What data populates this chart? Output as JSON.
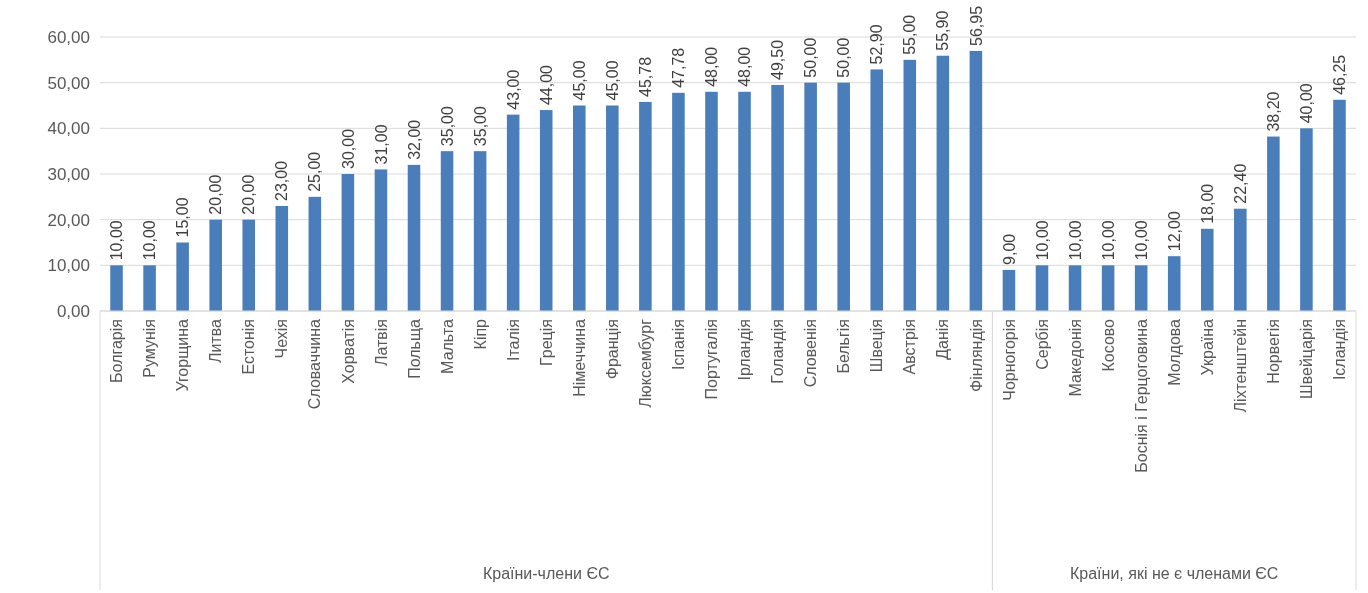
{
  "chart_data": [
    {
      "type": "bar",
      "categories": [
        "Болгарія",
        "Румунія",
        "Угорщина",
        "Литва",
        "Естонія",
        "Чехія",
        "Словаччина",
        "Хорватія",
        "Латвія",
        "Польща",
        "Мальта",
        "Кіпр",
        "Італія",
        "Греція",
        "Німеччина",
        "Франція",
        "Люксембург",
        "Іспанія",
        "Португалія",
        "Ірландія",
        "Голандія",
        "Словенія",
        "Бельгія",
        "Швеція",
        "Австрія",
        "Данія",
        "Фінляндія"
      ],
      "values": [
        10,
        10,
        15,
        20,
        20,
        23,
        25,
        30,
        31,
        32,
        35,
        35,
        43,
        44,
        45,
        45,
        45.78,
        47.78,
        48,
        48,
        49.5,
        50,
        50,
        52.9,
        55,
        55.9,
        56.95
      ],
      "value_labels": [
        "10,00",
        "10,00",
        "15,00",
        "20,00",
        "20,00",
        "23,00",
        "25,00",
        "30,00",
        "31,00",
        "32,00",
        "35,00",
        "35,00",
        "43,00",
        "44,00",
        "45,00",
        "45,00",
        "45,78",
        "47,78",
        "48,00",
        "48,00",
        "49,50",
        "50,00",
        "50,00",
        "52,90",
        "55,00",
        "55,90",
        "56,95"
      ],
      "color": "#4a7ebb",
      "xlabel": "Країни-члени ЄС",
      "ylim": [
        0,
        60
      ],
      "yticks": [
        {
          "value": 0,
          "label": "0,00"
        },
        {
          "value": 10,
          "label": "10,00"
        },
        {
          "value": 20,
          "label": "20,00"
        },
        {
          "value": 30,
          "label": "30,00"
        },
        {
          "value": 40,
          "label": "40,00"
        },
        {
          "value": 50,
          "label": "50,00"
        },
        {
          "value": 60,
          "label": "60,00"
        }
      ],
      "grid": "y"
    },
    {
      "type": "bar",
      "categories": [
        "Чорногорія",
        "Сербія",
        "Македонія",
        "Косово",
        "Боснія і Герцоговина",
        "Молдова",
        "Україна",
        "Ліхтенштейн",
        "Норвегія",
        "Швейцарія",
        "Ісландія"
      ],
      "values": [
        9,
        10,
        10,
        10,
        10,
        12,
        18,
        22.4,
        38.2,
        40,
        46.25
      ],
      "value_labels": [
        "9,00",
        "10,00",
        "10,00",
        "10,00",
        "10,00",
        "12,00",
        "18,00",
        "22,40",
        "38,20",
        "40,00",
        "46,25"
      ],
      "color": "#4a7ebb",
      "xlabel": "Країни, які не є членами ЄС",
      "ylim": [
        0,
        60
      ],
      "yticks": [
        0,
        10,
        20,
        30,
        40,
        50,
        60
      ],
      "grid": "y",
      "tick_labels": "x"
    }
  ]
}
